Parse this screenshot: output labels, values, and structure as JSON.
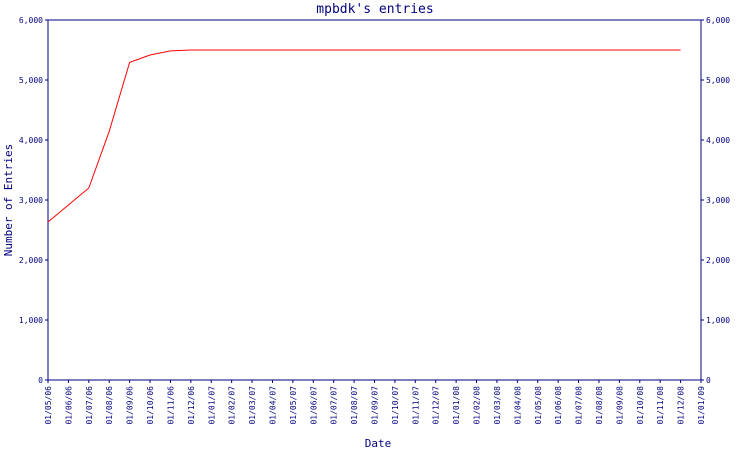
{
  "chart_data": {
    "type": "line",
    "title": "mpbdk's entries",
    "x_label": "Date",
    "y_label": "Number of Entries",
    "categories": [
      "01/05/06",
      "01/06/06",
      "01/07/06",
      "01/08/06",
      "01/09/06",
      "01/10/06",
      "01/11/06",
      "01/12/06",
      "01/01/07",
      "01/02/07",
      "01/03/07",
      "01/04/07",
      "01/05/07",
      "01/06/07",
      "01/07/07",
      "01/08/07",
      "01/09/07",
      "01/10/07",
      "01/11/07",
      "01/12/07",
      "01/01/08",
      "01/02/08",
      "01/03/08",
      "01/04/08",
      "01/05/08",
      "01/06/08",
      "01/07/08",
      "01/08/08",
      "01/09/08",
      "01/10/08",
      "01/11/08",
      "01/12/08",
      "01/01/09"
    ],
    "series": [
      {
        "name": "Entries",
        "color": "#ff0000",
        "values": [
          2633,
          2917,
          3200,
          4145,
          5293,
          5417,
          5485,
          5500,
          5500,
          5500,
          5500,
          5500,
          5500,
          5500,
          5500,
          5500,
          5500,
          5500,
          5500,
          5500,
          5500,
          5500,
          5500,
          5500,
          5500,
          5500,
          5500,
          5500,
          5500,
          5500,
          5500,
          5500,
          null
        ]
      }
    ],
    "ylim": [
      0,
      6000
    ],
    "yticks": [
      0,
      {
        "value": 1000,
        "label": "1,000"
      },
      {
        "value": 2000,
        "label": "2,000"
      },
      {
        "value": 3000,
        "label": "3,000"
      },
      {
        "value": 4000,
        "label": "4,000"
      },
      {
        "value": 5000,
        "label": "5,000"
      },
      {
        "value": 6000,
        "label": "6,000"
      }
    ],
    "y2lim": [
      0,
      6000
    ],
    "y2ticks": [
      0,
      {
        "value": 1000,
        "label": "1,000"
      },
      {
        "value": 2000,
        "label": "2,000"
      },
      {
        "value": 3000,
        "label": "3,000"
      },
      {
        "value": 4000,
        "label": "4,000"
      },
      {
        "value": 5000,
        "label": "5,000"
      },
      {
        "value": 6000,
        "label": "6,000"
      }
    ],
    "axis_color": "#000080"
  }
}
